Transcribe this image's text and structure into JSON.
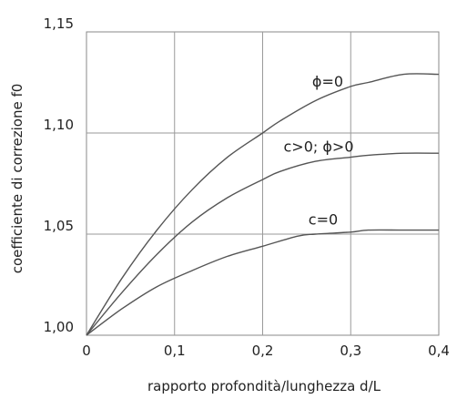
{
  "chart_data": {
    "type": "line",
    "xlabel": "rapporto profondità/lunghezza  d/L",
    "ylabel": "coefficiente di correzione f0",
    "xlim": [
      0,
      0.4
    ],
    "ylim": [
      1.0,
      1.15
    ],
    "x_ticks": [
      "0",
      "0,1",
      "0,2",
      "0,3",
      "0,4"
    ],
    "y_ticks": [
      "1,00",
      "1,05",
      "1,10",
      "1,15"
    ],
    "grid": true,
    "series": [
      {
        "name": "ϕ=0",
        "x": [
          0,
          0.04,
          0.08,
          0.12,
          0.16,
          0.2,
          0.22,
          0.26,
          0.3,
          0.32,
          0.36,
          0.4
        ],
        "y": [
          1.0,
          1.028,
          1.052,
          1.072,
          1.088,
          1.1,
          1.106,
          1.116,
          1.123,
          1.125,
          1.129,
          1.129
        ]
      },
      {
        "name": "c>0; ϕ>0",
        "x": [
          0,
          0.04,
          0.08,
          0.12,
          0.16,
          0.2,
          0.22,
          0.26,
          0.3,
          0.32,
          0.36,
          0.4
        ],
        "y": [
          1.0,
          1.021,
          1.04,
          1.056,
          1.068,
          1.077,
          1.081,
          1.086,
          1.088,
          1.089,
          1.09,
          1.09
        ]
      },
      {
        "name": "c=0",
        "x": [
          0,
          0.04,
          0.08,
          0.12,
          0.16,
          0.2,
          0.24,
          0.26,
          0.3,
          0.32,
          0.36,
          0.4
        ],
        "y": [
          1.0,
          1.013,
          1.024,
          1.032,
          1.039,
          1.044,
          1.049,
          1.05,
          1.051,
          1.052,
          1.052,
          1.052
        ]
      }
    ]
  }
}
